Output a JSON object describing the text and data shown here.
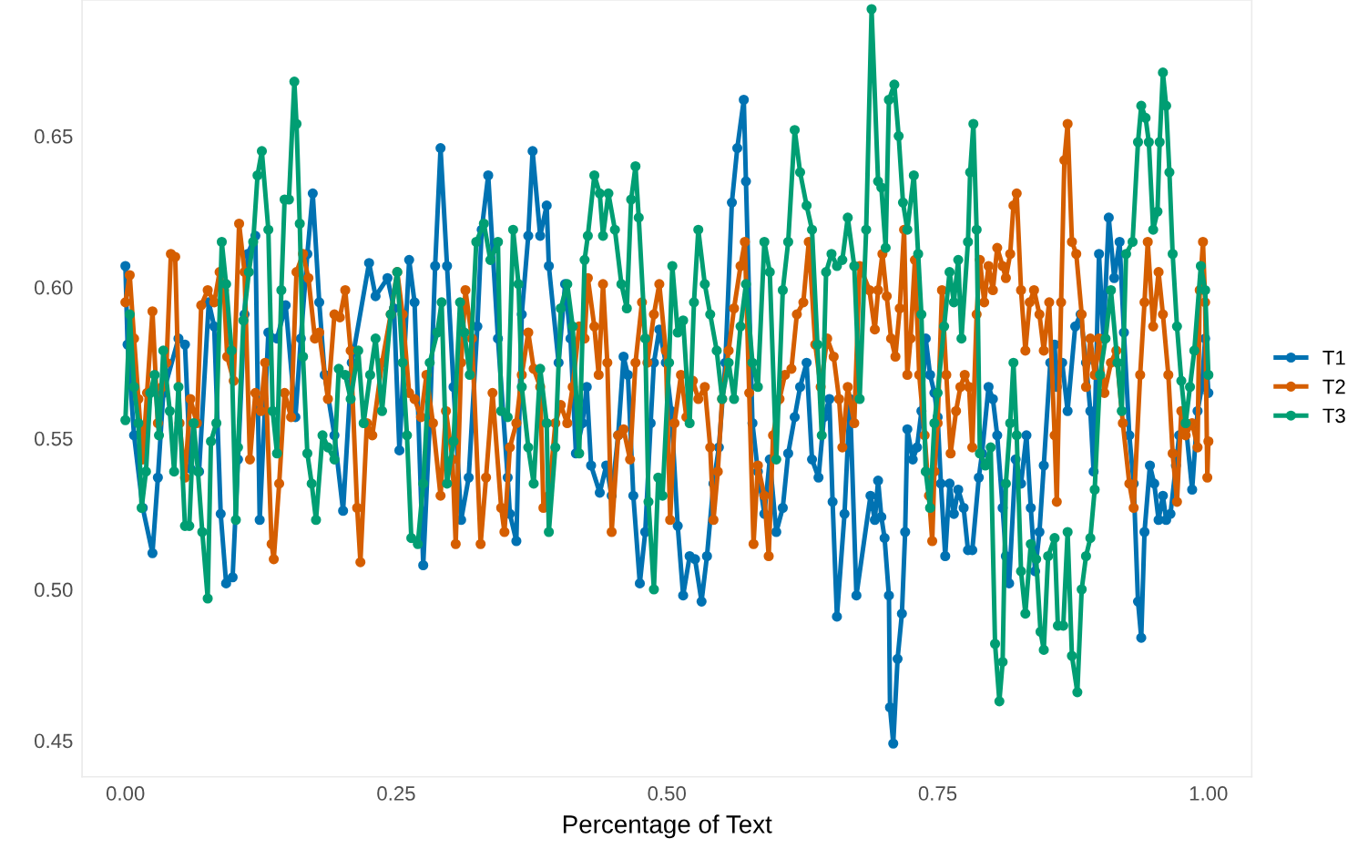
{
  "chart_data": {
    "type": "line",
    "xlabel": "Percentage of Text",
    "xlim": [
      -0.04,
      1.04
    ],
    "ylim": [
      0.438,
      0.695
    ],
    "xticks": [
      {
        "value": 0,
        "label": "0.00"
      },
      {
        "value": 0.25,
        "label": "0.25"
      },
      {
        "value": 0.5,
        "label": "0.50"
      },
      {
        "value": 0.75,
        "label": "0.75"
      },
      {
        "value": 1,
        "label": "1.00"
      }
    ],
    "yticks": [
      {
        "value": 0.45,
        "label": "0.45"
      },
      {
        "value": 0.5,
        "label": "0.50"
      },
      {
        "value": 0.55,
        "label": "0.55"
      },
      {
        "value": 0.6,
        "label": "0.60"
      },
      {
        "value": 0.65,
        "label": "0.65"
      }
    ],
    "legend": "right",
    "marker": "circle",
    "line_style": "solid",
    "series": [
      {
        "name": "T1",
        "color": "#0072b2",
        "x": [
          0.0,
          0.002,
          0.008,
          0.016,
          0.025,
          0.03,
          0.035,
          0.049,
          0.055,
          0.06,
          0.068,
          0.077,
          0.082,
          0.088,
          0.093,
          0.099,
          0.104,
          0.11,
          0.113,
          0.12,
          0.124,
          0.132,
          0.14,
          0.148,
          0.157,
          0.162,
          0.168,
          0.173,
          0.179,
          0.184,
          0.193,
          0.201,
          0.209,
          0.225,
          0.231,
          0.242,
          0.248,
          0.253,
          0.262,
          0.267,
          0.275,
          0.281,
          0.286,
          0.291,
          0.297,
          0.303,
          0.31,
          0.317,
          0.325,
          0.329,
          0.335,
          0.344,
          0.353,
          0.355,
          0.361,
          0.366,
          0.372,
          0.376,
          0.383,
          0.389,
          0.391,
          0.4,
          0.406,
          0.411,
          0.416,
          0.422,
          0.426,
          0.43,
          0.438,
          0.444,
          0.449,
          0.455,
          0.46,
          0.464,
          0.469,
          0.475,
          0.48,
          0.485,
          0.488,
          0.493,
          0.499,
          0.504,
          0.51,
          0.515,
          0.521,
          0.526,
          0.532,
          0.537,
          0.543,
          0.548,
          0.554,
          0.56,
          0.565,
          0.571,
          0.573,
          0.579,
          0.584,
          0.59,
          0.595,
          0.601,
          0.607,
          0.612,
          0.618,
          0.623,
          0.629,
          0.634,
          0.64,
          0.645,
          0.65,
          0.653,
          0.657,
          0.664,
          0.669,
          0.675,
          0.688,
          0.692,
          0.695,
          0.698,
          0.701,
          0.705,
          0.706,
          0.709,
          0.713,
          0.717,
          0.72,
          0.722,
          0.727,
          0.731,
          0.735,
          0.739,
          0.743,
          0.747,
          0.75,
          0.753,
          0.757,
          0.761,
          0.765,
          0.769,
          0.774,
          0.778,
          0.782,
          0.788,
          0.791,
          0.797,
          0.801,
          0.805,
          0.81,
          0.813,
          0.816,
          0.822,
          0.827,
          0.832,
          0.836,
          0.84,
          0.844,
          0.848,
          0.854,
          0.858,
          0.86,
          0.865,
          0.87,
          0.877,
          0.882,
          0.887,
          0.891,
          0.894,
          0.899,
          0.903,
          0.908,
          0.913,
          0.918,
          0.922,
          0.927,
          0.931,
          0.935,
          0.938,
          0.941,
          0.946,
          0.95,
          0.954,
          0.958,
          0.961,
          0.965,
          0.97,
          0.973,
          0.979,
          0.985,
          0.99,
          0.994,
          0.997,
          1.0
        ],
        "values": [
          0.607,
          0.581,
          0.551,
          0.527,
          0.512,
          0.537,
          0.565,
          0.583,
          0.581,
          0.54,
          0.539,
          0.595,
          0.587,
          0.525,
          0.502,
          0.504,
          0.543,
          0.591,
          0.611,
          0.617,
          0.523,
          0.585,
          0.583,
          0.594,
          0.557,
          0.583,
          0.611,
          0.631,
          0.595,
          0.571,
          0.551,
          0.526,
          0.575,
          0.608,
          0.597,
          0.603,
          0.593,
          0.546,
          0.609,
          0.595,
          0.508,
          0.555,
          0.607,
          0.646,
          0.607,
          0.567,
          0.523,
          0.537,
          0.587,
          0.619,
          0.637,
          0.583,
          0.537,
          0.525,
          0.516,
          0.591,
          0.617,
          0.645,
          0.617,
          0.627,
          0.607,
          0.575,
          0.601,
          0.583,
          0.545,
          0.555,
          0.567,
          0.541,
          0.532,
          0.541,
          0.531,
          0.551,
          0.577,
          0.571,
          0.531,
          0.502,
          0.519,
          0.555,
          0.575,
          0.586,
          0.575,
          0.559,
          0.521,
          0.498,
          0.511,
          0.51,
          0.496,
          0.511,
          0.535,
          0.547,
          0.575,
          0.628,
          0.646,
          0.662,
          0.635,
          0.555,
          0.539,
          0.525,
          0.543,
          0.519,
          0.527,
          0.545,
          0.557,
          0.567,
          0.575,
          0.543,
          0.537,
          0.557,
          0.563,
          0.529,
          0.491,
          0.525,
          0.563,
          0.498,
          0.531,
          0.523,
          0.536,
          0.524,
          0.517,
          0.498,
          0.461,
          0.449,
          0.477,
          0.492,
          0.519,
          0.553,
          0.543,
          0.547,
          0.559,
          0.583,
          0.571,
          0.565,
          0.557,
          0.535,
          0.511,
          0.535,
          0.525,
          0.533,
          0.527,
          0.513,
          0.513,
          0.537,
          0.545,
          0.567,
          0.563,
          0.551,
          0.527,
          0.511,
          0.502,
          0.543,
          0.535,
          0.551,
          0.527,
          0.506,
          0.519,
          0.541,
          0.575,
          0.581,
          0.567,
          0.575,
          0.559,
          0.587,
          0.591,
          0.575,
          0.559,
          0.539,
          0.611,
          0.583,
          0.623,
          0.603,
          0.615,
          0.585,
          0.551,
          0.535,
          0.496,
          0.484,
          0.519,
          0.541,
          0.535,
          0.523,
          0.531,
          0.523,
          0.525,
          0.541,
          0.551,
          0.555,
          0.533,
          0.559,
          0.567,
          0.583,
          0.565
        ]
      },
      {
        "name": "T2",
        "color": "#d55e00",
        "x": [
          0.0,
          0.004,
          0.008,
          0.012,
          0.016,
          0.02,
          0.025,
          0.03,
          0.034,
          0.038,
          0.042,
          0.046,
          0.05,
          0.055,
          0.06,
          0.066,
          0.07,
          0.076,
          0.082,
          0.087,
          0.091,
          0.094,
          0.1,
          0.105,
          0.11,
          0.115,
          0.12,
          0.125,
          0.129,
          0.135,
          0.137,
          0.142,
          0.147,
          0.153,
          0.158,
          0.164,
          0.169,
          0.175,
          0.179,
          0.187,
          0.193,
          0.198,
          0.203,
          0.208,
          0.214,
          0.217,
          0.223,
          0.228,
          0.237,
          0.245,
          0.251,
          0.256,
          0.262,
          0.267,
          0.273,
          0.278,
          0.284,
          0.291,
          0.296,
          0.302,
          0.305,
          0.31,
          0.314,
          0.32,
          0.328,
          0.333,
          0.339,
          0.347,
          0.35,
          0.355,
          0.361,
          0.366,
          0.372,
          0.377,
          0.383,
          0.386,
          0.391,
          0.397,
          0.402,
          0.408,
          0.413,
          0.419,
          0.424,
          0.427,
          0.433,
          0.437,
          0.441,
          0.445,
          0.449,
          0.455,
          0.46,
          0.466,
          0.471,
          0.477,
          0.482,
          0.488,
          0.493,
          0.499,
          0.503,
          0.507,
          0.513,
          0.518,
          0.524,
          0.529,
          0.535,
          0.54,
          0.543,
          0.547,
          0.551,
          0.557,
          0.562,
          0.568,
          0.572,
          0.576,
          0.58,
          0.584,
          0.59,
          0.594,
          0.598,
          0.604,
          0.609,
          0.615,
          0.62,
          0.626,
          0.631,
          0.637,
          0.642,
          0.648,
          0.654,
          0.659,
          0.662,
          0.667,
          0.673,
          0.678,
          0.687,
          0.692,
          0.695,
          0.699,
          0.703,
          0.707,
          0.711,
          0.715,
          0.719,
          0.722,
          0.725,
          0.729,
          0.733,
          0.738,
          0.742,
          0.745,
          0.747,
          0.75,
          0.754,
          0.758,
          0.762,
          0.767,
          0.771,
          0.775,
          0.779,
          0.782,
          0.786,
          0.789,
          0.793,
          0.797,
          0.801,
          0.805,
          0.81,
          0.813,
          0.817,
          0.82,
          0.823,
          0.827,
          0.831,
          0.835,
          0.839,
          0.844,
          0.848,
          0.853,
          0.858,
          0.86,
          0.864,
          0.867,
          0.87,
          0.874,
          0.878,
          0.883,
          0.887,
          0.891,
          0.895,
          0.899,
          0.904,
          0.91,
          0.915,
          0.921,
          0.927,
          0.931,
          0.937,
          0.941,
          0.944,
          0.949,
          0.954,
          0.958,
          0.963,
          0.967,
          0.971,
          0.975,
          0.979,
          0.985,
          0.99,
          0.992,
          0.995,
          0.997,
          0.999,
          1.0
        ],
        "values": [
          0.595,
          0.604,
          0.583,
          0.563,
          0.543,
          0.565,
          0.592,
          0.555,
          0.567,
          0.575,
          0.611,
          0.61,
          0.555,
          0.537,
          0.563,
          0.555,
          0.594,
          0.599,
          0.595,
          0.605,
          0.599,
          0.577,
          0.569,
          0.621,
          0.605,
          0.543,
          0.565,
          0.559,
          0.575,
          0.515,
          0.51,
          0.535,
          0.565,
          0.557,
          0.605,
          0.611,
          0.603,
          0.583,
          0.585,
          0.563,
          0.591,
          0.59,
          0.599,
          0.579,
          0.527,
          0.509,
          0.555,
          0.551,
          0.575,
          0.591,
          0.605,
          0.591,
          0.565,
          0.563,
          0.557,
          0.571,
          0.555,
          0.531,
          0.559,
          0.543,
          0.515,
          0.575,
          0.599,
          0.583,
          0.515,
          0.537,
          0.565,
          0.527,
          0.519,
          0.547,
          0.555,
          0.571,
          0.585,
          0.573,
          0.567,
          0.527,
          0.531,
          0.555,
          0.561,
          0.555,
          0.567,
          0.587,
          0.583,
          0.603,
          0.587,
          0.571,
          0.601,
          0.575,
          0.519,
          0.551,
          0.553,
          0.543,
          0.575,
          0.595,
          0.575,
          0.591,
          0.601,
          0.579,
          0.523,
          0.555,
          0.571,
          0.557,
          0.569,
          0.563,
          0.567,
          0.547,
          0.523,
          0.539,
          0.563,
          0.579,
          0.593,
          0.607,
          0.615,
          0.565,
          0.515,
          0.541,
          0.531,
          0.511,
          0.551,
          0.563,
          0.571,
          0.573,
          0.591,
          0.595,
          0.615,
          0.581,
          0.567,
          0.583,
          0.577,
          0.563,
          0.547,
          0.567,
          0.555,
          0.607,
          0.599,
          0.586,
          0.599,
          0.611,
          0.597,
          0.583,
          0.577,
          0.593,
          0.619,
          0.571,
          0.583,
          0.609,
          0.571,
          0.551,
          0.531,
          0.516,
          0.539,
          0.555,
          0.599,
          0.571,
          0.545,
          0.559,
          0.567,
          0.571,
          0.567,
          0.547,
          0.591,
          0.609,
          0.595,
          0.607,
          0.599,
          0.613,
          0.607,
          0.603,
          0.611,
          0.627,
          0.631,
          0.599,
          0.579,
          0.595,
          0.599,
          0.591,
          0.579,
          0.595,
          0.551,
          0.529,
          0.595,
          0.642,
          0.654,
          0.615,
          0.611,
          0.591,
          0.567,
          0.583,
          0.571,
          0.583,
          0.565,
          0.575,
          0.579,
          0.555,
          0.535,
          0.527,
          0.571,
          0.595,
          0.615,
          0.587,
          0.605,
          0.591,
          0.571,
          0.545,
          0.529,
          0.559,
          0.551,
          0.555,
          0.547,
          0.599,
          0.615,
          0.595,
          0.537,
          0.549
        ]
      },
      {
        "name": "T3",
        "color": "#009e73",
        "x": [
          0.0,
          0.004,
          0.008,
          0.012,
          0.015,
          0.019,
          0.023,
          0.027,
          0.031,
          0.035,
          0.041,
          0.045,
          0.049,
          0.055,
          0.059,
          0.063,
          0.067,
          0.071,
          0.076,
          0.079,
          0.084,
          0.089,
          0.093,
          0.098,
          0.102,
          0.104,
          0.109,
          0.114,
          0.118,
          0.122,
          0.126,
          0.132,
          0.136,
          0.14,
          0.144,
          0.147,
          0.151,
          0.156,
          0.158,
          0.161,
          0.164,
          0.168,
          0.172,
          0.176,
          0.182,
          0.187,
          0.193,
          0.197,
          0.203,
          0.208,
          0.215,
          0.22,
          0.226,
          0.231,
          0.237,
          0.245,
          0.251,
          0.256,
          0.26,
          0.264,
          0.27,
          0.275,
          0.281,
          0.288,
          0.292,
          0.297,
          0.303,
          0.309,
          0.313,
          0.318,
          0.324,
          0.331,
          0.337,
          0.344,
          0.347,
          0.353,
          0.358,
          0.363,
          0.366,
          0.372,
          0.377,
          0.383,
          0.389,
          0.391,
          0.397,
          0.402,
          0.408,
          0.413,
          0.419,
          0.424,
          0.427,
          0.433,
          0.438,
          0.441,
          0.446,
          0.452,
          0.458,
          0.463,
          0.467,
          0.471,
          0.474,
          0.48,
          0.483,
          0.488,
          0.492,
          0.496,
          0.502,
          0.505,
          0.51,
          0.515,
          0.521,
          0.525,
          0.529,
          0.535,
          0.54,
          0.546,
          0.551,
          0.557,
          0.562,
          0.568,
          0.573,
          0.579,
          0.584,
          0.59,
          0.595,
          0.601,
          0.607,
          0.612,
          0.618,
          0.623,
          0.629,
          0.634,
          0.639,
          0.643,
          0.647,
          0.652,
          0.657,
          0.662,
          0.667,
          0.673,
          0.678,
          0.684,
          0.689,
          0.695,
          0.698,
          0.702,
          0.705,
          0.71,
          0.714,
          0.718,
          0.722,
          0.728,
          0.732,
          0.735,
          0.739,
          0.743,
          0.747,
          0.75,
          0.756,
          0.761,
          0.765,
          0.769,
          0.772,
          0.778,
          0.78,
          0.783,
          0.786,
          0.789,
          0.794,
          0.799,
          0.803,
          0.807,
          0.81,
          0.813,
          0.817,
          0.82,
          0.823,
          0.827,
          0.831,
          0.836,
          0.841,
          0.845,
          0.848,
          0.852,
          0.858,
          0.861,
          0.866,
          0.87,
          0.874,
          0.879,
          0.883,
          0.887,
          0.891,
          0.895,
          0.9,
          0.905,
          0.91,
          0.916,
          0.92,
          0.924,
          0.93,
          0.935,
          0.938,
          0.942,
          0.945,
          0.949,
          0.953,
          0.955,
          0.958,
          0.961,
          0.964,
          0.967,
          0.971,
          0.975,
          0.979,
          0.983,
          0.987,
          0.993,
          0.997,
          1.0
        ],
        "values": [
          0.556,
          0.591,
          0.567,
          0.555,
          0.527,
          0.539,
          0.565,
          0.571,
          0.551,
          0.579,
          0.559,
          0.539,
          0.567,
          0.521,
          0.521,
          0.555,
          0.539,
          0.519,
          0.497,
          0.549,
          0.555,
          0.615,
          0.601,
          0.579,
          0.523,
          0.547,
          0.589,
          0.605,
          0.615,
          0.637,
          0.645,
          0.619,
          0.559,
          0.545,
          0.599,
          0.629,
          0.629,
          0.668,
          0.654,
          0.621,
          0.577,
          0.545,
          0.535,
          0.523,
          0.551,
          0.547,
          0.543,
          0.573,
          0.571,
          0.563,
          0.579,
          0.555,
          0.571,
          0.583,
          0.559,
          0.591,
          0.605,
          0.575,
          0.551,
          0.517,
          0.515,
          0.535,
          0.575,
          0.585,
          0.595,
          0.535,
          0.549,
          0.595,
          0.585,
          0.571,
          0.615,
          0.621,
          0.609,
          0.615,
          0.559,
          0.557,
          0.619,
          0.601,
          0.567,
          0.547,
          0.535,
          0.573,
          0.555,
          0.519,
          0.547,
          0.593,
          0.601,
          0.587,
          0.545,
          0.609,
          0.617,
          0.637,
          0.631,
          0.617,
          0.631,
          0.619,
          0.601,
          0.593,
          0.629,
          0.64,
          0.623,
          0.583,
          0.529,
          0.5,
          0.537,
          0.531,
          0.575,
          0.607,
          0.585,
          0.589,
          0.555,
          0.595,
          0.619,
          0.601,
          0.591,
          0.579,
          0.563,
          0.575,
          0.563,
          0.587,
          0.601,
          0.575,
          0.567,
          0.615,
          0.605,
          0.543,
          0.599,
          0.615,
          0.652,
          0.638,
          0.627,
          0.619,
          0.581,
          0.551,
          0.605,
          0.611,
          0.607,
          0.609,
          0.623,
          0.607,
          0.563,
          0.619,
          0.692,
          0.635,
          0.633,
          0.613,
          0.662,
          0.667,
          0.65,
          0.628,
          0.619,
          0.637,
          0.611,
          0.591,
          0.539,
          0.527,
          0.555,
          0.565,
          0.587,
          0.605,
          0.595,
          0.609,
          0.583,
          0.615,
          0.638,
          0.654,
          0.619,
          0.545,
          0.541,
          0.547,
          0.482,
          0.463,
          0.476,
          0.535,
          0.555,
          0.575,
          0.551,
          0.506,
          0.492,
          0.515,
          0.51,
          0.486,
          0.48,
          0.511,
          0.517,
          0.488,
          0.488,
          0.519,
          0.478,
          0.466,
          0.5,
          0.511,
          0.517,
          0.533,
          0.571,
          0.583,
          0.599,
          0.575,
          0.559,
          0.611,
          0.615,
          0.648,
          0.66,
          0.656,
          0.648,
          0.619,
          0.625,
          0.648,
          0.671,
          0.66,
          0.638,
          0.611,
          0.587,
          0.569,
          0.555,
          0.567,
          0.579,
          0.607,
          0.599,
          0.571
        ]
      }
    ]
  }
}
